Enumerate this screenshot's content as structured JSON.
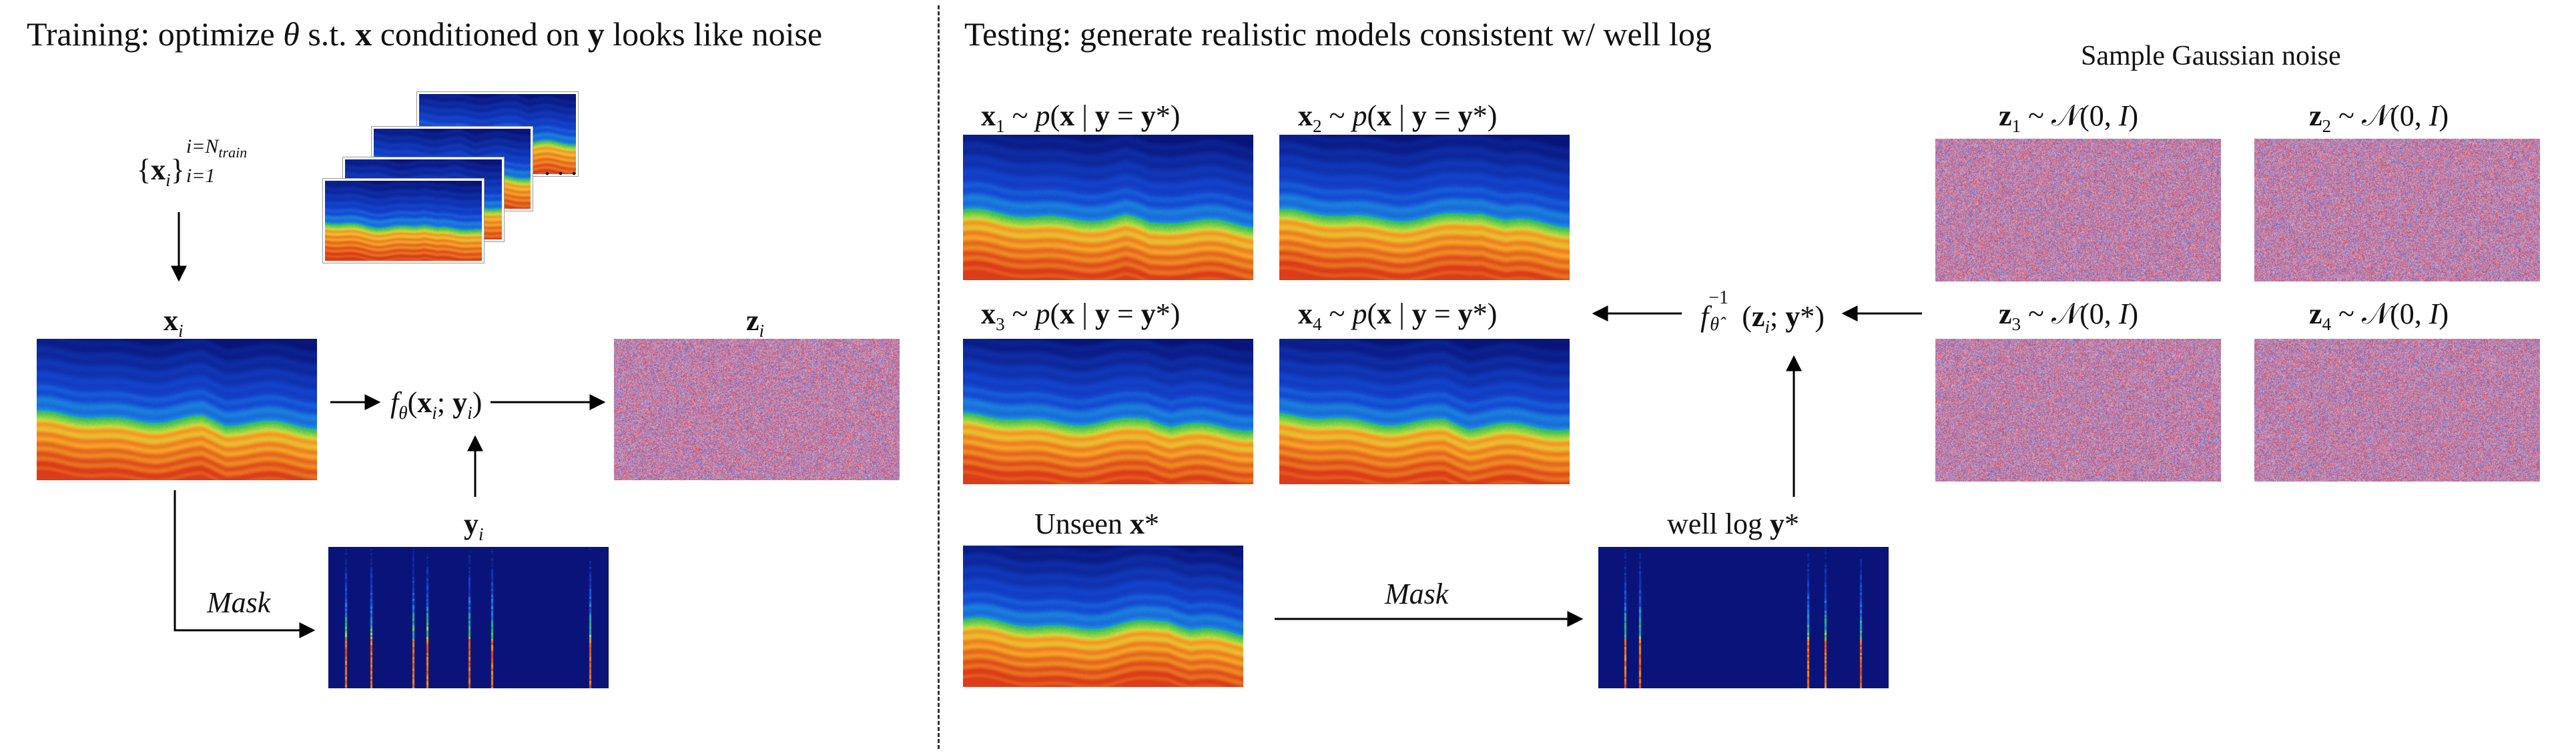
{
  "colors": {
    "deep_blue": "#0a1f8a",
    "blue": "#1e4ed8",
    "cyan": "#2aa8e0",
    "green": "#2fb53c",
    "orange": "#f5a623",
    "red": "#e0421b",
    "noise_red": "#d8495a",
    "noise_blue": "#5a6ad0",
    "arrow": "#000000"
  },
  "training": {
    "title_prefix": "Training: optimize ",
    "title_theta": "θ",
    "title_mid1": " s.t. ",
    "title_x": "x",
    "title_mid2": " conditioned on ",
    "title_y": "y",
    "title_suffix": " looks like noise",
    "set_open": "{",
    "set_x": "x",
    "set_i": "i",
    "set_close": "}",
    "set_sup": "i=N",
    "set_sup_sub": "train",
    "set_sub": "i=1",
    "x_label_b": "x",
    "x_label_i": "i",
    "z_label_b": "z",
    "z_label_i": "i",
    "y_label_b": "y",
    "y_label_i": "i",
    "f_label": "f",
    "f_sub": "θ",
    "f_args_open": "(",
    "f_args_x": "x",
    "f_args_i1": "i",
    "f_args_sep": "; ",
    "f_args_y": "y",
    "f_args_i2": "i",
    "f_args_close": ")",
    "mask_label": "Mask",
    "stack_dots": ". . ."
  },
  "testing": {
    "title": "Testing: generate realistic models consistent w/ well log",
    "noise_title": "Sample Gaussian noise",
    "samples": [
      {
        "x": "x",
        "idx": "1",
        "rest_a": " ~ ",
        "p": "p",
        "rest_b": "(",
        "xb": "x",
        "bar": " | ",
        "yb": "y",
        "eq": " = ",
        "ystar": "y",
        "star": "*)"
      },
      {
        "x": "x",
        "idx": "2",
        "rest_a": " ~ ",
        "p": "p",
        "rest_b": "(",
        "xb": "x",
        "bar": " | ",
        "yb": "y",
        "eq": " = ",
        "ystar": "y",
        "star": "*)"
      },
      {
        "x": "x",
        "idx": "3",
        "rest_a": " ~ ",
        "p": "p",
        "rest_b": "(",
        "xb": "x",
        "bar": " | ",
        "yb": "y",
        "eq": " = ",
        "ystar": "y",
        "star": "*)"
      },
      {
        "x": "x",
        "idx": "4",
        "rest_a": " ~ ",
        "p": "p",
        "rest_b": "(",
        "xb": "x",
        "bar": " | ",
        "yb": "y",
        "eq": " = ",
        "ystar": "y",
        "star": "*)"
      }
    ],
    "noises": [
      {
        "z": "z",
        "idx": "1",
        "rest": " ~ 𝒩(0, ",
        "I": "I",
        "close": ")"
      },
      {
        "z": "z",
        "idx": "2",
        "rest": " ~ 𝒩(0, ",
        "I": "I",
        "close": ")"
      },
      {
        "z": "z",
        "idx": "3",
        "rest": " ~ 𝒩(0, ",
        "I": "I",
        "close": ")"
      },
      {
        "z": "z",
        "idx": "4",
        "rest": " ~ 𝒩(0, ",
        "I": "I",
        "close": ")"
      }
    ],
    "inverse_f": "f",
    "inverse_sup": "−1",
    "inverse_sub": "θ̂",
    "inverse_open": "(",
    "inverse_z": "z",
    "inverse_i": "i",
    "inverse_sep": "; ",
    "inverse_y": "y",
    "inverse_close": "*)",
    "unseen_prefix": "Unseen ",
    "unseen_x": "x",
    "unseen_star": "*",
    "welllog_prefix": "well log ",
    "welllog_y": "y",
    "welllog_star": "*",
    "mask_label": "Mask"
  }
}
